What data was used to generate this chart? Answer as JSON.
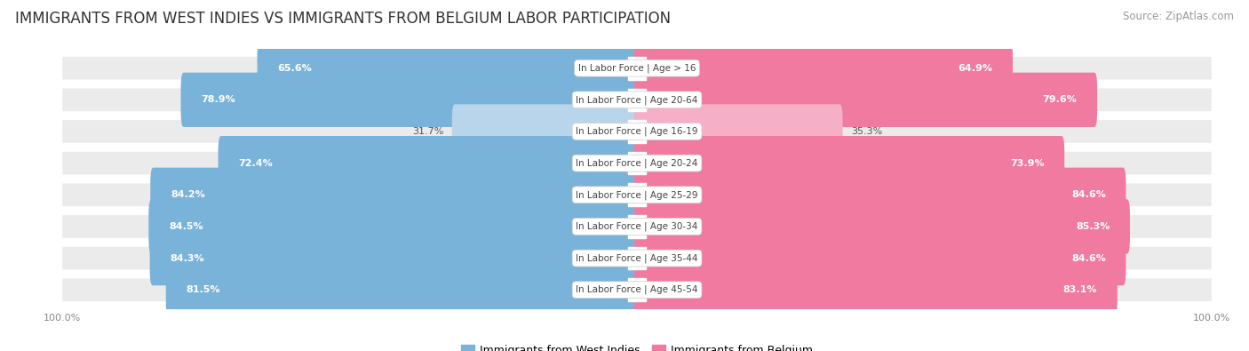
{
  "title": "IMMIGRANTS FROM WEST INDIES VS IMMIGRANTS FROM BELGIUM LABOR PARTICIPATION",
  "source": "Source: ZipAtlas.com",
  "categories": [
    "In Labor Force | Age > 16",
    "In Labor Force | Age 20-64",
    "In Labor Force | Age 16-19",
    "In Labor Force | Age 20-24",
    "In Labor Force | Age 25-29",
    "In Labor Force | Age 30-34",
    "In Labor Force | Age 35-44",
    "In Labor Force | Age 45-54"
  ],
  "west_indies": [
    65.6,
    78.9,
    31.7,
    72.4,
    84.2,
    84.5,
    84.3,
    81.5
  ],
  "belgium": [
    64.9,
    79.6,
    35.3,
    73.9,
    84.6,
    85.3,
    84.6,
    83.1
  ],
  "west_indies_color": "#7ab3d9",
  "west_indies_light_color": "#b8d5eb",
  "belgium_color": "#f07aa0",
  "belgium_light_color": "#f5b0c8",
  "row_bg_color": "#ebebeb",
  "row_gap_color": "#ffffff",
  "label_color_white": "#ffffff",
  "label_color_dark": "#555555",
  "max_value": 100.0,
  "legend_label_wi": "Immigrants from West Indies",
  "legend_label_be": "Immigrants from Belgium",
  "title_fontsize": 12,
  "source_fontsize": 8.5,
  "bar_label_fontsize": 8,
  "category_fontsize": 7.5,
  "legend_fontsize": 9,
  "axis_fontsize": 8,
  "threshold": 50.0
}
